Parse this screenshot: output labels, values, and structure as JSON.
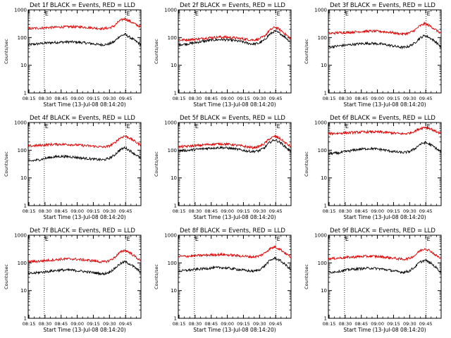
{
  "figure": {
    "colors": {
      "events": "#000000",
      "lld": "#dd0000",
      "axes": "#000000"
    }
  },
  "chart_data": [
    {
      "type": "line",
      "title": "Det 1f BLACK = Events, RED = LLD",
      "ylabel": "Counts/sec",
      "xlabel": "Start Time (13-Jul-08 08:14:20)",
      "xticks": [
        "08:15",
        "08:30",
        "08:45",
        "09:00",
        "09:15",
        "09:30",
        "09:45"
      ],
      "yticks": [
        "1",
        "10",
        "100",
        "1000"
      ],
      "yscale": "log",
      "ylim": [
        1,
        1000
      ],
      "xlim_minutes_after_start": [
        0,
        105
      ],
      "vlines_minutes_after_start": [
        15,
        91
      ],
      "vline_label": "E",
      "grid": false,
      "series": [
        {
          "name": "BLACK = Events",
          "x": [
            0,
            10,
            20,
            30,
            40,
            50,
            60,
            65,
            70,
            75,
            80,
            85,
            90,
            95,
            100,
            105
          ],
          "y": [
            55,
            60,
            65,
            68,
            70,
            66,
            60,
            56,
            55,
            58,
            70,
            110,
            130,
            100,
            75,
            55
          ]
        },
        {
          "name": "RED = LLD",
          "x": [
            0,
            10,
            20,
            30,
            40,
            50,
            60,
            65,
            70,
            75,
            80,
            85,
            90,
            95,
            100,
            105
          ],
          "y": [
            210,
            220,
            230,
            240,
            245,
            240,
            225,
            215,
            210,
            220,
            260,
            400,
            480,
            380,
            300,
            240
          ]
        }
      ]
    },
    {
      "type": "line",
      "title": "Det 2f BLACK = Events, RED = LLD",
      "ylabel": "Counts/sec",
      "xlabel": "Start Time (13-Jul-08 08:14:20)",
      "xticks": [
        "08:15",
        "08:30",
        "08:45",
        "09:00",
        "09:15",
        "09:30",
        "09:45"
      ],
      "yticks": [
        "1",
        "10",
        "100",
        "1000"
      ],
      "yscale": "log",
      "ylim": [
        1,
        1000
      ],
      "xlim_minutes_after_start": [
        0,
        105
      ],
      "vlines_minutes_after_start": [
        15,
        91
      ],
      "vline_label": "E",
      "grid": false,
      "series": [
        {
          "name": "BLACK = Events",
          "x": [
            0,
            10,
            20,
            30,
            40,
            50,
            60,
            65,
            70,
            75,
            80,
            85,
            90,
            95,
            100,
            105
          ],
          "y": [
            55,
            60,
            70,
            80,
            85,
            80,
            70,
            62,
            58,
            62,
            80,
            130,
            170,
            140,
            100,
            65
          ]
        },
        {
          "name": "RED = LLD",
          "x": [
            0,
            10,
            20,
            30,
            40,
            50,
            60,
            65,
            70,
            75,
            80,
            85,
            90,
            95,
            100,
            105
          ],
          "y": [
            80,
            85,
            90,
            100,
            105,
            100,
            90,
            85,
            82,
            88,
            110,
            180,
            240,
            190,
            130,
            90
          ]
        }
      ]
    },
    {
      "type": "line",
      "title": "Det 3f BLACK = Events, RED = LLD",
      "ylabel": "Counts/sec",
      "xlabel": "Start Time (13-Jul-08 08:14:20)",
      "xticks": [
        "08:15",
        "08:30",
        "08:45",
        "09:00",
        "09:15",
        "09:30",
        "09:45"
      ],
      "yticks": [
        "1",
        "10",
        "100",
        "1000"
      ],
      "yscale": "log",
      "ylim": [
        1,
        1000
      ],
      "xlim_minutes_after_start": [
        0,
        105
      ],
      "vlines_minutes_after_start": [
        15,
        91
      ],
      "vline_label": "E",
      "grid": false,
      "series": [
        {
          "name": "BLACK = Events",
          "x": [
            0,
            10,
            20,
            30,
            40,
            50,
            60,
            65,
            70,
            75,
            80,
            85,
            90,
            95,
            100,
            105
          ],
          "y": [
            45,
            50,
            55,
            60,
            62,
            58,
            50,
            46,
            44,
            48,
            62,
            95,
            120,
            95,
            70,
            45
          ]
        },
        {
          "name": "RED = LLD",
          "x": [
            0,
            10,
            20,
            30,
            40,
            50,
            60,
            65,
            70,
            75,
            80,
            85,
            90,
            95,
            100,
            105
          ],
          "y": [
            140,
            150,
            155,
            165,
            170,
            165,
            150,
            140,
            135,
            145,
            180,
            260,
            320,
            260,
            190,
            140
          ]
        }
      ]
    },
    {
      "type": "line",
      "title": "Det 4f BLACK = Events, RED = LLD",
      "ylabel": "Counts/sec",
      "xlabel": "Start Time (13-Jul-08 08:14:20)",
      "xticks": [
        "08:15",
        "08:30",
        "08:45",
        "09:00",
        "09:15",
        "09:30",
        "09:45"
      ],
      "yticks": [
        "1",
        "10",
        "100",
        "1000"
      ],
      "yscale": "log",
      "ylim": [
        1,
        1000
      ],
      "xlim_minutes_after_start": [
        0,
        105
      ],
      "vlines_minutes_after_start": [
        15,
        91
      ],
      "vline_label": "E",
      "grid": false,
      "series": [
        {
          "name": "BLACK = Events",
          "x": [
            0,
            10,
            20,
            30,
            40,
            50,
            60,
            65,
            70,
            75,
            80,
            85,
            90,
            95,
            100,
            105
          ],
          "y": [
            40,
            45,
            55,
            60,
            58,
            52,
            48,
            46,
            45,
            50,
            65,
            100,
            125,
            95,
            70,
            50
          ]
        },
        {
          "name": "RED = LLD",
          "x": [
            0,
            10,
            20,
            30,
            40,
            50,
            60,
            65,
            70,
            75,
            80,
            85,
            90,
            95,
            100,
            105
          ],
          "y": [
            140,
            150,
            160,
            165,
            160,
            150,
            140,
            135,
            130,
            140,
            175,
            270,
            330,
            270,
            200,
            150
          ]
        }
      ]
    },
    {
      "type": "line",
      "title": "Det 5f BLACK = Events, RED = LLD",
      "ylabel": "Counts/sec",
      "xlabel": "Start Time (13-Jul-08 08:14:20)",
      "xticks": [
        "08:15",
        "08:30",
        "08:45",
        "09:00",
        "09:15",
        "09:30",
        "09:45"
      ],
      "yticks": [
        "1",
        "10",
        "100",
        "1000"
      ],
      "yscale": "log",
      "ylim": [
        1,
        1000
      ],
      "xlim_minutes_after_start": [
        0,
        105
      ],
      "vlines_minutes_after_start": [
        15,
        91
      ],
      "vline_label": "E",
      "grid": false,
      "series": [
        {
          "name": "BLACK = Events",
          "x": [
            0,
            10,
            20,
            30,
            40,
            50,
            60,
            65,
            70,
            75,
            80,
            85,
            90,
            95,
            100,
            105
          ],
          "y": [
            95,
            100,
            110,
            120,
            125,
            115,
            100,
            92,
            90,
            95,
            120,
            190,
            240,
            190,
            130,
            90
          ]
        },
        {
          "name": "RED = LLD",
          "x": [
            0,
            10,
            20,
            30,
            40,
            50,
            60,
            65,
            70,
            75,
            80,
            85,
            90,
            95,
            100,
            105
          ],
          "y": [
            130,
            140,
            150,
            165,
            170,
            160,
            140,
            130,
            125,
            135,
            170,
            260,
            320,
            260,
            180,
            130
          ]
        }
      ]
    },
    {
      "type": "line",
      "title": "Det 6f BLACK = Events, RED = LLD",
      "ylabel": "Counts/sec",
      "xlabel": "Start Time (13-Jul-08 08:14:20)",
      "xticks": [
        "08:15",
        "08:30",
        "08:45",
        "09:00",
        "09:15",
        "09:30",
        "09:45"
      ],
      "yticks": [
        "1",
        "10",
        "100",
        "1000"
      ],
      "yscale": "log",
      "ylim": [
        1,
        1000
      ],
      "xlim_minutes_after_start": [
        0,
        105
      ],
      "vlines_minutes_after_start": [
        15,
        91
      ],
      "vline_label": "E",
      "grid": false,
      "series": [
        {
          "name": "BLACK = Events",
          "x": [
            0,
            10,
            20,
            30,
            40,
            50,
            60,
            65,
            70,
            75,
            80,
            85,
            90,
            95,
            100,
            105
          ],
          "y": [
            75,
            80,
            95,
            110,
            115,
            105,
            90,
            85,
            82,
            88,
            110,
            160,
            190,
            160,
            120,
            85
          ]
        },
        {
          "name": "RED = LLD",
          "x": [
            0,
            10,
            20,
            30,
            40,
            50,
            60,
            65,
            70,
            75,
            80,
            85,
            90,
            95,
            100,
            105
          ],
          "y": [
            400,
            410,
            430,
            450,
            460,
            450,
            420,
            400,
            390,
            410,
            480,
            600,
            680,
            600,
            480,
            400
          ]
        }
      ]
    },
    {
      "type": "line",
      "title": "Det 7f BLACK = Events, RED = LLD",
      "ylabel": "Counts/sec",
      "xlabel": "Start Time (13-Jul-08 08:14:20)",
      "xticks": [
        "08:15",
        "08:30",
        "08:45",
        "09:00",
        "09:15",
        "09:30",
        "09:45"
      ],
      "yticks": [
        "1",
        "10",
        "100",
        "1000"
      ],
      "yscale": "log",
      "ylim": [
        1,
        1000
      ],
      "xlim_minutes_after_start": [
        0,
        105
      ],
      "vlines_minutes_after_start": [
        15,
        91
      ],
      "vline_label": "E",
      "grid": false,
      "series": [
        {
          "name": "BLACK = Events",
          "x": [
            0,
            10,
            20,
            30,
            40,
            50,
            60,
            65,
            70,
            75,
            80,
            85,
            90,
            95,
            100,
            105
          ],
          "y": [
            40,
            45,
            50,
            55,
            55,
            50,
            45,
            42,
            40,
            45,
            60,
            90,
            110,
            90,
            65,
            45
          ]
        },
        {
          "name": "RED = LLD",
          "x": [
            0,
            10,
            20,
            30,
            40,
            50,
            60,
            65,
            70,
            75,
            80,
            85,
            90,
            95,
            100,
            105
          ],
          "y": [
            110,
            115,
            125,
            135,
            140,
            130,
            120,
            112,
            108,
            118,
            150,
            230,
            290,
            230,
            165,
            115
          ]
        }
      ]
    },
    {
      "type": "line",
      "title": "Det 8f BLACK = Events, RED = LLD",
      "ylabel": "Counts/sec",
      "xlabel": "Start Time (13-Jul-08 08:14:20)",
      "xticks": [
        "08:15",
        "08:30",
        "08:45",
        "09:00",
        "09:15",
        "09:30",
        "09:45"
      ],
      "yticks": [
        "1",
        "10",
        "100",
        "1000"
      ],
      "yscale": "log",
      "ylim": [
        1,
        1000
      ],
      "xlim_minutes_after_start": [
        0,
        105
      ],
      "vlines_minutes_after_start": [
        15,
        91
      ],
      "vline_label": "E",
      "grid": false,
      "series": [
        {
          "name": "BLACK = Events",
          "x": [
            0,
            10,
            20,
            30,
            40,
            50,
            60,
            65,
            70,
            75,
            80,
            85,
            90,
            95,
            100,
            105
          ],
          "y": [
            50,
            55,
            60,
            65,
            68,
            62,
            55,
            52,
            50,
            55,
            75,
            120,
            150,
            120,
            85,
            55
          ]
        },
        {
          "name": "RED = LLD",
          "x": [
            0,
            10,
            20,
            30,
            40,
            50,
            60,
            65,
            70,
            75,
            80,
            85,
            90,
            95,
            100,
            105
          ],
          "y": [
            170,
            175,
            185,
            195,
            200,
            190,
            175,
            168,
            165,
            175,
            220,
            320,
            380,
            310,
            220,
            160
          ]
        }
      ]
    },
    {
      "type": "line",
      "title": "Det 9f BLACK = Events, RED = LLD",
      "ylabel": "Counts/sec",
      "xlabel": "Start Time (13-Jul-08 08:14:20)",
      "xticks": [
        "08:15",
        "08:30",
        "08:45",
        "09:00",
        "09:15",
        "09:30",
        "09:45"
      ],
      "yticks": [
        "1",
        "10",
        "100",
        "1000"
      ],
      "yscale": "log",
      "ylim": [
        1,
        1000
      ],
      "xlim_minutes_after_start": [
        0,
        105
      ],
      "vlines_minutes_after_start": [
        15,
        91
      ],
      "vline_label": "E",
      "grid": false,
      "series": [
        {
          "name": "BLACK = Events",
          "x": [
            0,
            10,
            20,
            30,
            40,
            50,
            60,
            65,
            70,
            75,
            80,
            85,
            90,
            95,
            100,
            105
          ],
          "y": [
            45,
            50,
            58,
            62,
            65,
            60,
            52,
            48,
            46,
            50,
            68,
            105,
            125,
            100,
            70,
            45
          ]
        },
        {
          "name": "RED = LLD",
          "x": [
            0,
            10,
            20,
            30,
            40,
            50,
            60,
            65,
            70,
            75,
            80,
            85,
            90,
            95,
            100,
            105
          ],
          "y": [
            140,
            150,
            160,
            170,
            175,
            165,
            150,
            140,
            135,
            145,
            180,
            270,
            330,
            270,
            190,
            140
          ]
        }
      ]
    }
  ]
}
